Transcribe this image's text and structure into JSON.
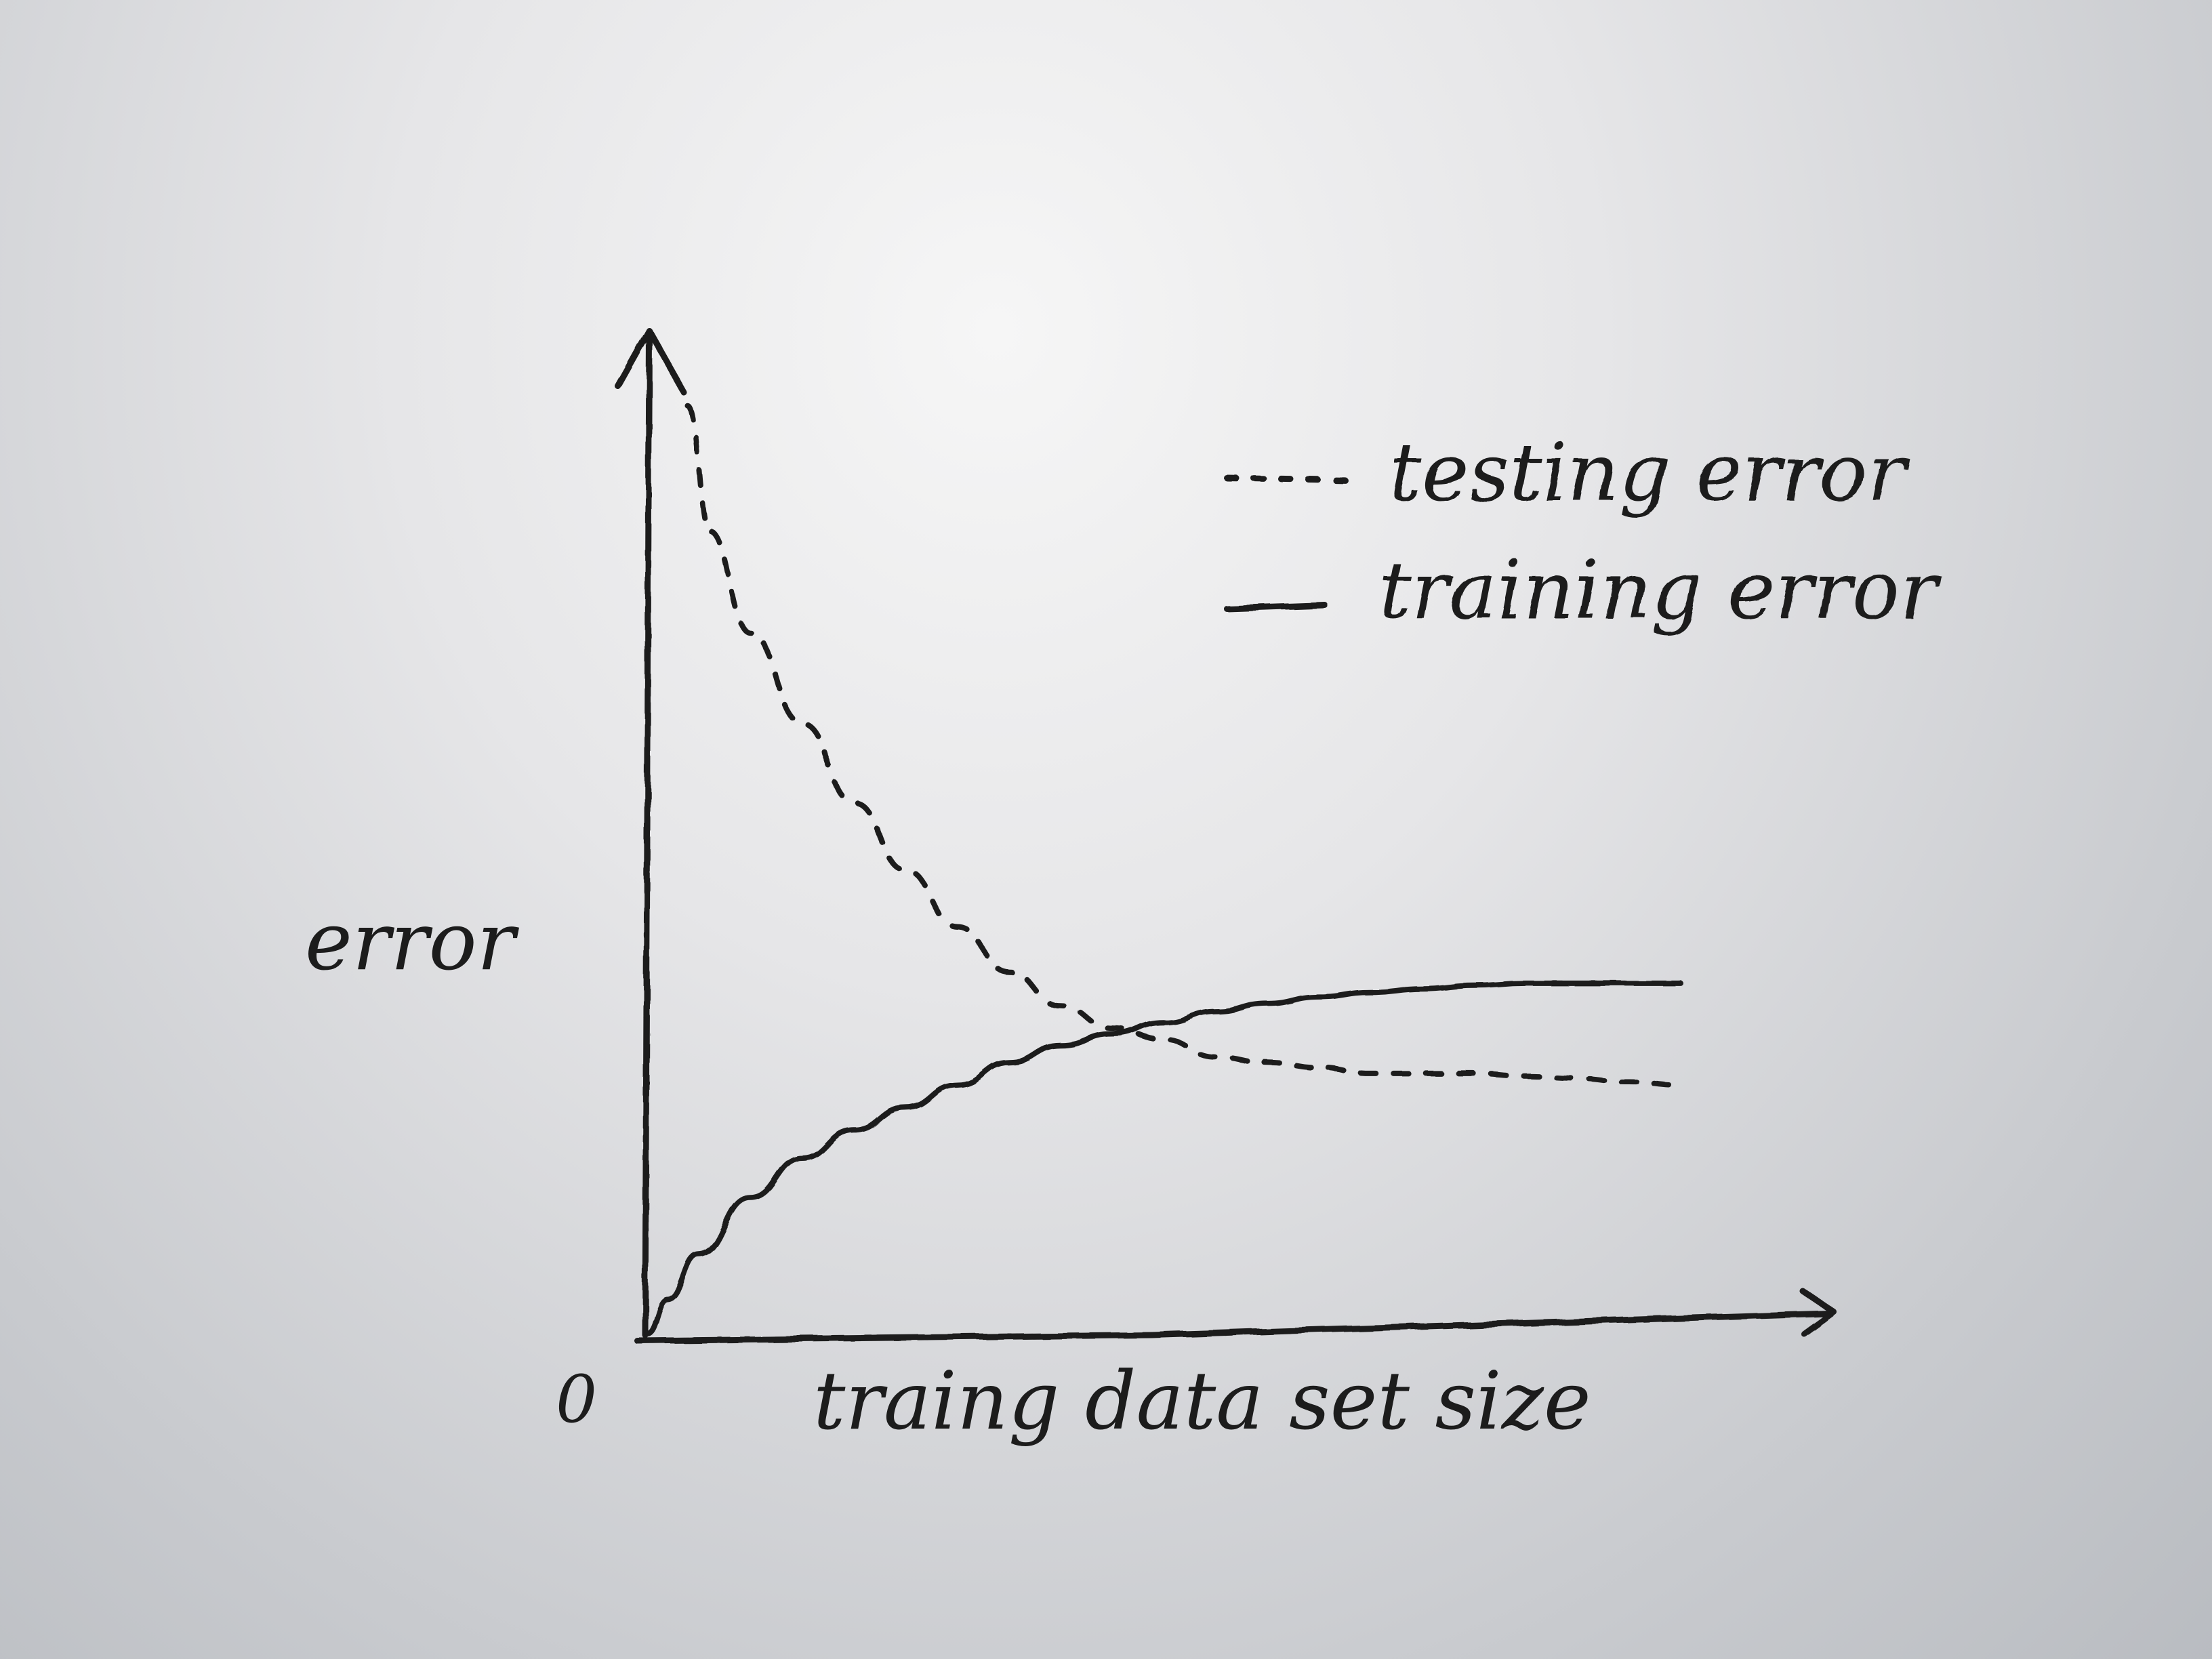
{
  "chart_data": {
    "type": "line",
    "title": "",
    "xlabel": "traing data set size",
    "ylabel": "error",
    "origin_label": "0",
    "xlim": [
      0,
      100
    ],
    "ylim": [
      0,
      100
    ],
    "grid": false,
    "legend": "top-right",
    "series": [
      {
        "name": "testing error",
        "style": "dashed",
        "color": "#1c1c1c",
        "x": [
          4,
          6,
          10,
          15,
          20,
          25,
          30,
          35,
          40,
          45,
          50,
          55,
          60,
          65,
          70,
          75,
          80,
          85,
          90,
          95,
          100
        ],
        "y": [
          82,
          71,
          62,
          54,
          47,
          41,
          36,
          32,
          29,
          27,
          26,
          24.5,
          24,
          23.5,
          23,
          23,
          23,
          22.8,
          22.6,
          22.3,
          22
        ]
      },
      {
        "name": "training error",
        "style": "solid",
        "color": "#1c1c1c",
        "x": [
          0,
          2,
          5,
          10,
          15,
          20,
          25,
          30,
          35,
          40,
          45,
          50,
          55,
          60,
          65,
          70,
          75,
          80,
          85,
          90,
          95,
          100
        ],
        "y": [
          0,
          3,
          7,
          12,
          15.5,
          18,
          20,
          22,
          24,
          25.5,
          26.5,
          27.5,
          28.5,
          29.2,
          29.8,
          30.2,
          30.5,
          30.8,
          31,
          31,
          31,
          31
        ]
      }
    ]
  }
}
